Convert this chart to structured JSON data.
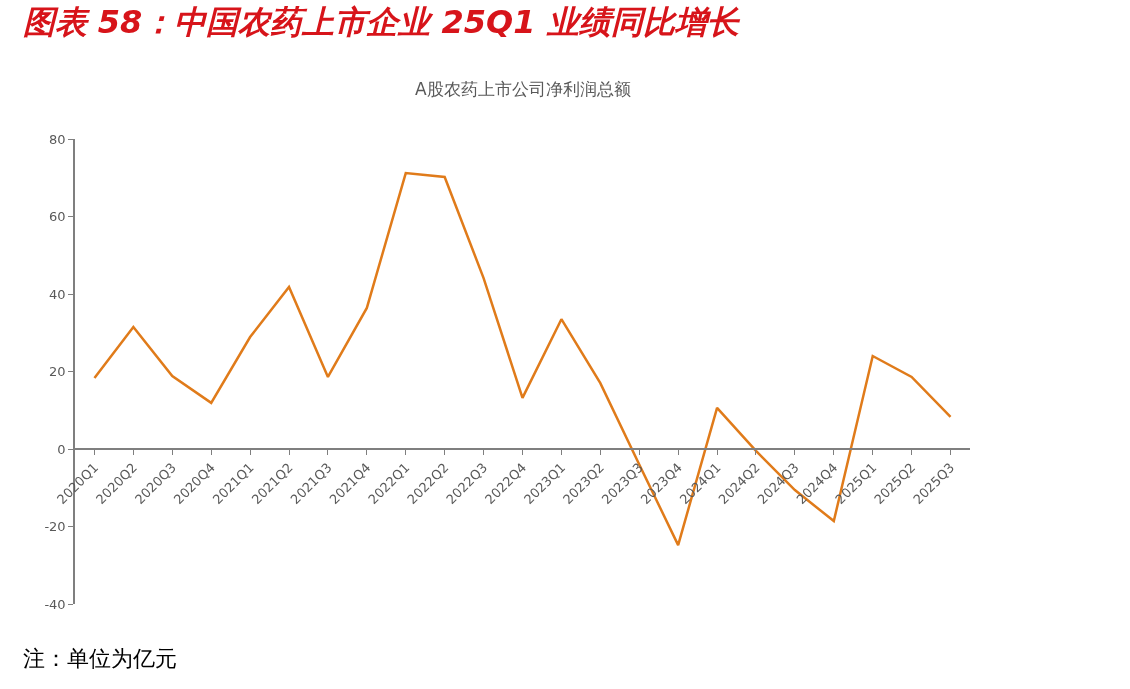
{
  "chart_data": {
    "type": "line",
    "title": "图表 58：中国农药上市企业 25Q1 业绩同比增长",
    "subtitle": "A股农药上市公司净利润总额",
    "categories": [
      "2020Q1",
      "2020Q2",
      "2020Q3",
      "2020Q4",
      "2021Q1",
      "2021Q2",
      "2021Q3",
      "2021Q4",
      "2022Q1",
      "2022Q2",
      "2022Q3",
      "2022Q4",
      "2023Q1",
      "2023Q2",
      "2023Q3",
      "2023Q4",
      "2024Q1",
      "2024Q2",
      "2024Q3",
      "2024Q4",
      "2025Q1",
      "2025Q2",
      "2025Q3"
    ],
    "series": [
      {
        "color": "#e07b1a",
        "values": [
          18.3,
          31.5,
          18.8,
          11.9,
          28.9,
          41.8,
          18.6,
          36.4,
          71.2,
          70.2,
          44.1,
          13.2,
          33.5,
          17.0,
          -4,
          -24.8,
          10.6,
          -0.5,
          -10.6,
          -18.6,
          24.0,
          18.6,
          8.3
        ]
      }
    ],
    "ylim": [
      -40,
      80
    ],
    "yticks": [
      -40,
      -20,
      0,
      20,
      40,
      60,
      80
    ],
    "legend": false,
    "marker": "none",
    "line_style": "solid",
    "annotations": [
      "注：单位为亿元"
    ]
  }
}
